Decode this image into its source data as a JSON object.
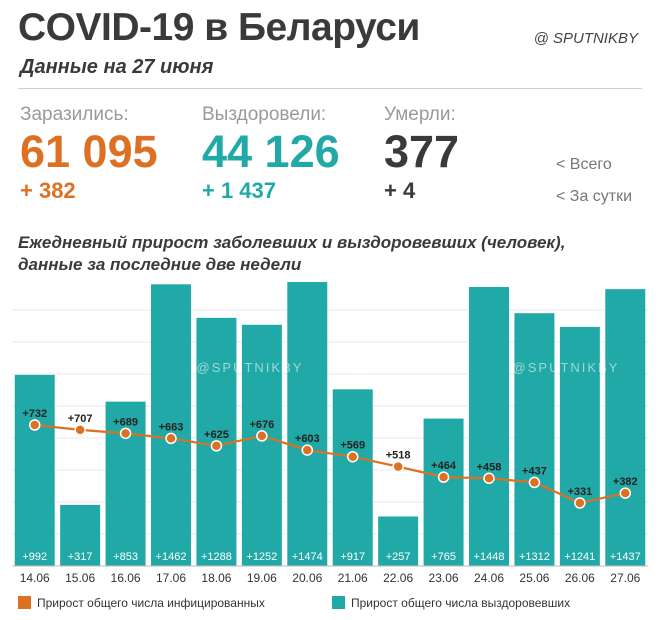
{
  "header": {
    "title": "COVID-19 в Беларуси",
    "subtitle": "Данные на 27 июня",
    "brand": "@ SPUTNIKBY"
  },
  "stats": {
    "infected": {
      "label": "Заразились:",
      "total": "61 095",
      "delta": "+ 382"
    },
    "recovered": {
      "label": "Выздоровели:",
      "total": "44 126",
      "delta": "+ 1 437"
    },
    "died": {
      "label": "Умерли:",
      "total": "377",
      "delta": "+ 4"
    },
    "legend_total": "<  Всего",
    "legend_daily": "<  За сутки"
  },
  "chart_title_line1": "Ежедневный прирост заболевших и выздоровевших (человек),",
  "chart_title_line2": "данные за последние две недели",
  "watermark": "@SPUTNIKBY",
  "colors": {
    "orange": "#dd7123",
    "teal": "#21a9a7",
    "dark": "#3a3a3a"
  },
  "chart_data": {
    "type": "bar",
    "categories": [
      "14.06",
      "15.06",
      "16.06",
      "17.06",
      "18.06",
      "19.06",
      "20.06",
      "21.06",
      "22.06",
      "23.06",
      "24.06",
      "25.06",
      "26.06",
      "27.06"
    ],
    "series": [
      {
        "name": "Прирост общего числа выздоровевших",
        "kind": "bar",
        "color": "#21a9a7",
        "values": [
          992,
          317,
          853,
          1462,
          1288,
          1252,
          1474,
          917,
          257,
          765,
          1448,
          1312,
          1241,
          1437
        ],
        "labels": [
          "+992",
          "+317",
          "+853",
          "+1462",
          "+1288",
          "+1252",
          "+1474",
          "+917",
          "+257",
          "+765",
          "+1448",
          "+1312",
          "+1241",
          "+1437"
        ]
      },
      {
        "name": "Прирост общего числа инфицированных",
        "kind": "line",
        "color": "#dd7123",
        "values": [
          732,
          707,
          689,
          663,
          625,
          676,
          603,
          569,
          518,
          464,
          458,
          437,
          331,
          382
        ],
        "labels": [
          "+732",
          "+707",
          "+689",
          "+663",
          "+625",
          "+676",
          "+603",
          "+569",
          "+518",
          "+464",
          "+458",
          "+437",
          "+331",
          "+382"
        ]
      }
    ],
    "grid": true
  },
  "legend": {
    "infected": "Прирост общего числа инфицированных",
    "recovered": "Прирост общего числа выздоровевших"
  }
}
